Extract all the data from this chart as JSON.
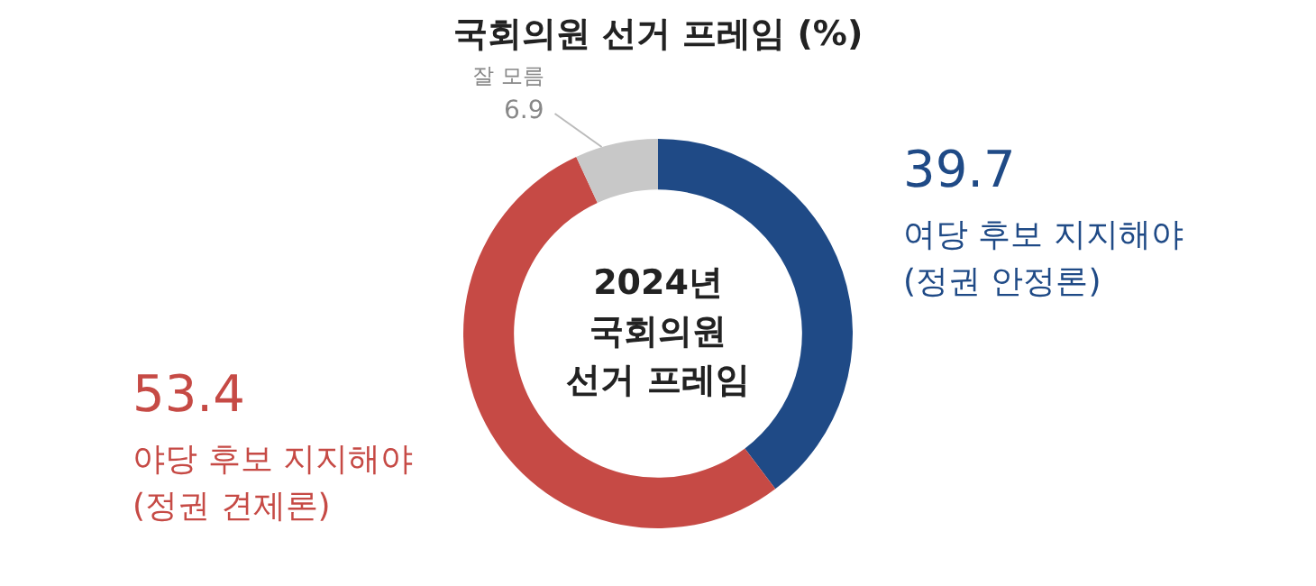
{
  "chart_data": {
    "type": "donut",
    "title": "국회의원 선거 프레임 (%)",
    "categories": [
      "여당 후보 지지해야\n(정권 안정론)",
      "야당 후보 지지해야\n(정권 견제론)",
      "잘 모름"
    ],
    "values": [
      39.7,
      53.4,
      6.9
    ],
    "colors": [
      "#1f4a86",
      "#c64a45",
      "#c8c8c8"
    ],
    "data_labels": true,
    "legend": false,
    "annotations": [
      "2024년\n국회의원\n선거 프레임"
    ]
  }
}
